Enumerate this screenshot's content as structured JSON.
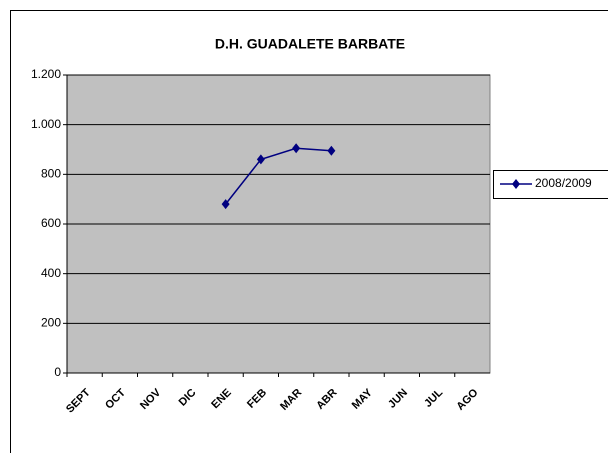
{
  "chart_data": {
    "type": "line",
    "title": "D.H. GUADALETE BARBATE",
    "categories": [
      "SEPT",
      "OCT",
      "NOV",
      "DIC",
      "ENE",
      "FEB",
      "MAR",
      "ABR",
      "MAY",
      "JUN",
      "JUL",
      "AGO"
    ],
    "series": [
      {
        "name": "2008/2009",
        "color": "#000080",
        "values": [
          null,
          null,
          null,
          null,
          680,
          860,
          905,
          895,
          null,
          null,
          null,
          null
        ]
      }
    ],
    "ylim": [
      0,
      1200
    ],
    "yticks": [
      0,
      200,
      400,
      600,
      800,
      {
        "value": 1000,
        "label": "1.000"
      },
      {
        "value": 1200,
        "label": "1.200"
      }
    ],
    "grid": true,
    "legend": "right"
  }
}
